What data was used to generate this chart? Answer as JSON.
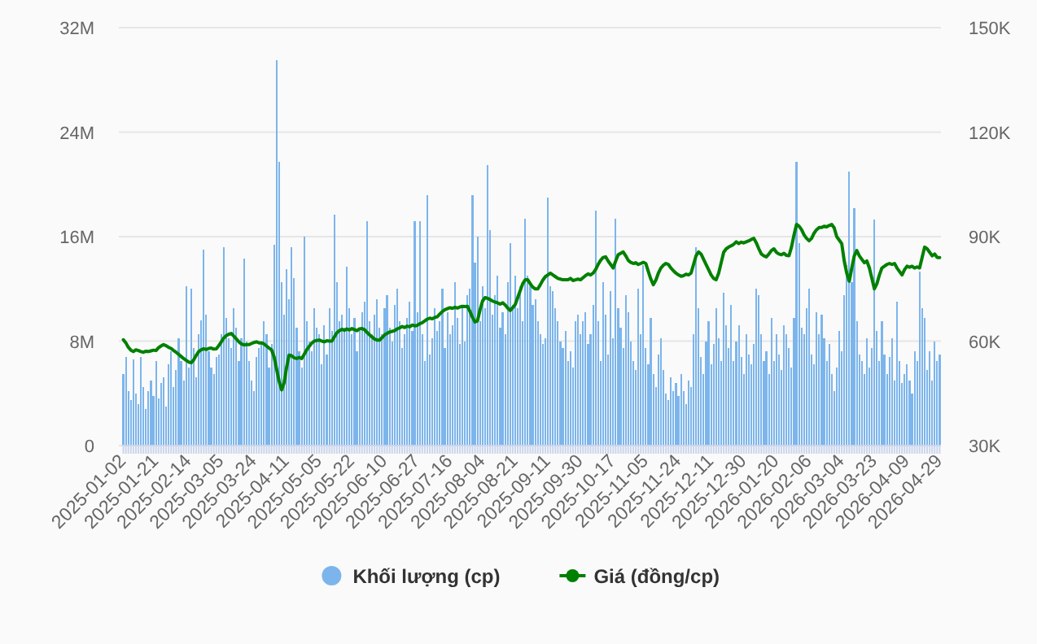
{
  "chart_data": {
    "type": "bar",
    "categories": [
      "2025-01-02",
      null,
      null,
      null,
      null,
      null,
      null,
      null,
      null,
      null,
      null,
      null,
      null,
      "2025-01-21",
      null,
      null,
      null,
      null,
      null,
      null,
      null,
      null,
      null,
      null,
      null,
      null,
      "2025-02-14",
      null,
      null,
      null,
      null,
      null,
      null,
      null,
      null,
      null,
      null,
      null,
      null,
      "2025-03-05",
      null,
      null,
      null,
      null,
      null,
      null,
      null,
      null,
      null,
      null,
      null,
      null,
      "2025-03-24",
      null,
      null,
      null,
      null,
      null,
      null,
      null,
      null,
      null,
      null,
      null,
      null,
      "2025-04-11",
      null,
      null,
      null,
      null,
      null,
      null,
      null,
      null,
      null,
      null,
      null,
      null,
      "2025-05-05",
      null,
      null,
      null,
      null,
      null,
      null,
      null,
      null,
      null,
      null,
      null,
      null,
      "2025-05-22",
      null,
      null,
      null,
      null,
      null,
      null,
      null,
      null,
      null,
      null,
      null,
      null,
      "2025-06-10",
      null,
      null,
      null,
      null,
      null,
      null,
      null,
      null,
      null,
      null,
      null,
      null,
      "2025-06-27",
      null,
      null,
      null,
      null,
      null,
      null,
      null,
      null,
      null,
      null,
      null,
      null,
      "2025-07-16",
      null,
      null,
      null,
      null,
      null,
      null,
      null,
      null,
      null,
      null,
      null,
      null,
      "2025-08-04",
      null,
      null,
      null,
      null,
      null,
      null,
      null,
      null,
      null,
      null,
      null,
      null,
      "2025-08-21",
      null,
      null,
      null,
      null,
      null,
      null,
      null,
      null,
      null,
      null,
      null,
      null,
      "2025-09-11",
      null,
      null,
      null,
      null,
      null,
      null,
      null,
      null,
      null,
      null,
      null,
      null,
      "2025-09-30",
      null,
      null,
      null,
      null,
      null,
      null,
      null,
      null,
      null,
      null,
      null,
      null,
      "2025-10-17",
      null,
      null,
      null,
      null,
      null,
      null,
      null,
      null,
      null,
      null,
      null,
      null,
      "2025-11-05",
      null,
      null,
      null,
      null,
      null,
      null,
      null,
      null,
      null,
      null,
      null,
      null,
      "2025-11-24",
      null,
      null,
      null,
      null,
      null,
      null,
      null,
      null,
      null,
      null,
      null,
      null,
      "2025-12-11",
      null,
      null,
      null,
      null,
      null,
      null,
      null,
      null,
      null,
      null,
      null,
      null,
      "2025-12-30",
      null,
      null,
      null,
      null,
      null,
      null,
      null,
      null,
      null,
      null,
      null,
      null,
      "2026-01-20",
      null,
      null,
      null,
      null,
      null,
      null,
      null,
      null,
      null,
      null,
      null,
      null,
      "2026-02-06",
      null,
      null,
      null,
      null,
      null,
      null,
      null,
      null,
      null,
      null,
      null,
      null,
      "2026-03-04",
      null,
      null,
      null,
      null,
      null,
      null,
      null,
      null,
      null,
      null,
      null,
      null,
      "2026-03-23",
      null,
      null,
      null,
      null,
      null,
      null,
      null,
      null,
      null,
      null,
      null,
      null,
      "2026-04-09",
      null,
      null,
      null,
      null,
      null,
      null,
      null,
      null,
      null,
      null,
      null,
      null,
      "2026-04-29"
    ],
    "series": [
      {
        "name": "Khối lượng (cp)",
        "type": "bar",
        "color": "#7cb5ec",
        "values": [
          5500000,
          6800000,
          4200000,
          3500000,
          6600000,
          4000000,
          3200000,
          6800000,
          4500000,
          2800000,
          4200000,
          5000000,
          3800000,
          6500000,
          3600000,
          4800000,
          5200000,
          3000000,
          6200000,
          7200000,
          4500000,
          5800000,
          8200000,
          6500000,
          5000000,
          12200000,
          6000000,
          12000000,
          7500000,
          5200000,
          8500000,
          9600000,
          15000000,
          10000000,
          7200000,
          6000000,
          5500000,
          6800000,
          7000000,
          8500000,
          15200000,
          9800000,
          8200000,
          7500000,
          10500000,
          9000000,
          6500000,
          8200000,
          14300000,
          8000000,
          6500000,
          5000000,
          4200000,
          6800000,
          7500000,
          8000000,
          9500000,
          8500000,
          6000000,
          7800000,
          15400000,
          29500000,
          21700000,
          12500000,
          10000000,
          13500000,
          11200000,
          15200000,
          12800000,
          9000000,
          7200000,
          6000000,
          16000000,
          9500000,
          8000000,
          7200000,
          10500000,
          9000000,
          8500000,
          6200000,
          9200000,
          7000000,
          10500000,
          8800000,
          17700000,
          12500000,
          9500000,
          10000000,
          9000000,
          13700000,
          10500000,
          8500000,
          9800000,
          7200000,
          8800000,
          10200000,
          11000000,
          17200000,
          9500000,
          8500000,
          10000000,
          11200000,
          9000000,
          8500000,
          10500000,
          11500000,
          9000000,
          8000000,
          10800000,
          12000000,
          9500000,
          7500000,
          8500000,
          9800000,
          11000000,
          8800000,
          17200000,
          10200000,
          17200000,
          8500000,
          6500000,
          19200000,
          7000000,
          8200000,
          10500000,
          8800000,
          9500000,
          12000000,
          7500000,
          10200000,
          8500000,
          9200000,
          12500000,
          9800000,
          7800000,
          10500000,
          8000000,
          11500000,
          12000000,
          19200000,
          14000000,
          16000000,
          9500000,
          12200000,
          10500000,
          21500000,
          16500000,
          10000000,
          11500000,
          13000000,
          9000000,
          10200000,
          8500000,
          12500000,
          15500000,
          10800000,
          13000000,
          10500000,
          12200000,
          9500000,
          17400000,
          13000000,
          12500000,
          10800000,
          11200000,
          9500000,
          8500000,
          7800000,
          8200000,
          19000000,
          12200000,
          11800000,
          10500000,
          9500000,
          8000000,
          7500000,
          8800000,
          6500000,
          7200000,
          6000000,
          9500000,
          10000000,
          8500000,
          9500000,
          10200000,
          7800000,
          8500000,
          10800000,
          18000000,
          9500000,
          6500000,
          12500000,
          10000000,
          7000000,
          11800000,
          8200000,
          17400000,
          10500000,
          9000000,
          7500000,
          11500000,
          10200000,
          8000000,
          6500000,
          5800000,
          12000000,
          8500000,
          13800000,
          7500000,
          6200000,
          9800000,
          5500000,
          4500000,
          7000000,
          8200000,
          5800000,
          4000000,
          3500000,
          5200000,
          4200000,
          4800000,
          3800000,
          5500000,
          4200000,
          3200000,
          5000000,
          4500000,
          8500000,
          15200000,
          10500000,
          6800000,
          5500000,
          8000000,
          9500000,
          6200000,
          7800000,
          10500000,
          8200000,
          6500000,
          11700000,
          9200000,
          7500000,
          10800000,
          6500000,
          8000000,
          9200000,
          6800000,
          5500000,
          8500000,
          7000000,
          6200000,
          7800000,
          12000000,
          11500000,
          8500000,
          6500000,
          7200000,
          5500000,
          9800000,
          6500000,
          8500000,
          7000000,
          5800000,
          9200000,
          8500000,
          7500000,
          6000000,
          9800000,
          21700000,
          15500000,
          9000000,
          8500000,
          10500000,
          12000000,
          7000000,
          6200000,
          10200000,
          8500000,
          10000000,
          8200000,
          6500000,
          7800000,
          5500000,
          4200000,
          6000000,
          8800000,
          7200000,
          11500000,
          13800000,
          21000000,
          12500000,
          18200000,
          9500000,
          7000000,
          6500000,
          5500000,
          8200000,
          6000000,
          7500000,
          17300000,
          8800000,
          6500000,
          9500000,
          7000000,
          5500000,
          6800000,
          8200000,
          5000000,
          11000000,
          6500000,
          4800000,
          5500000,
          6200000,
          5000000,
          4000000,
          7200000,
          6500000,
          13300000,
          10500000,
          9800000,
          5800000,
          7200000,
          5000000,
          8000000,
          6500000,
          7000000
        ]
      },
      {
        "name": "Giá (đồng/cp)",
        "type": "line",
        "axis": "y2",
        "color": "#008000",
        "values": [
          60400,
          59500,
          58200,
          57400,
          57000,
          57500,
          57300,
          57000,
          56800,
          57100,
          57000,
          57200,
          57400,
          57300,
          58100,
          58600,
          59000,
          58700,
          58200,
          57900,
          57300,
          56800,
          56200,
          55600,
          55000,
          54500,
          54000,
          53800,
          54600,
          55900,
          57000,
          57500,
          57800,
          57600,
          57900,
          58000,
          57700,
          57800,
          58700,
          59800,
          60900,
          61600,
          62000,
          62200,
          61400,
          60600,
          59800,
          59200,
          58900,
          59000,
          59000,
          59300,
          59600,
          59800,
          59500,
          59500,
          59200,
          58600,
          58000,
          57500,
          55500,
          52000,
          48500,
          46000,
          48000,
          52500,
          56000,
          55800,
          55200,
          55000,
          55300,
          55000,
          56200,
          57500,
          58500,
          59400,
          60000,
          60200,
          60300,
          60000,
          59800,
          60100,
          60000,
          60000,
          61200,
          62400,
          63000,
          63400,
          63100,
          63500,
          63200,
          63600,
          63300,
          63000,
          63500,
          63600,
          63300,
          62500,
          61800,
          61200,
          60600,
          60300,
          60300,
          61000,
          61800,
          62200,
          62600,
          62800,
          63000,
          63500,
          63800,
          64200,
          63900,
          64300,
          64100,
          64600,
          64400,
          64500,
          65000,
          65300,
          65800,
          66300,
          66600,
          66400,
          66800,
          67000,
          67800,
          68500,
          69000,
          69300,
          69600,
          69400,
          69700,
          69500,
          69800,
          70000,
          69900,
          70000,
          68500,
          66800,
          65500,
          65800,
          69000,
          71500,
          72500,
          72300,
          71900,
          71500,
          71200,
          71000,
          70600,
          71000,
          70400,
          69500,
          68800,
          69600,
          70500,
          72500,
          74500,
          76500,
          77600,
          77600,
          76500,
          75500,
          75000,
          75000,
          76200,
          77500,
          78500,
          79000,
          79500,
          79000,
          78500,
          78000,
          77800,
          77600,
          77600,
          77600,
          78000,
          77400,
          77600,
          77800,
          77600,
          78200,
          78800,
          79300,
          79000,
          79500,
          80500,
          82000,
          83200,
          84000,
          84200,
          83000,
          82000,
          81000,
          83000,
          84800,
          85200,
          85600,
          84500,
          83200,
          82600,
          82300,
          82500,
          82000,
          82300,
          82600,
          82300,
          80000,
          77800,
          76200,
          77500,
          79500,
          81000,
          81800,
          82300,
          82000,
          81000,
          80200,
          79500,
          79000,
          78600,
          78800,
          79200,
          79000,
          79500,
          82000,
          84500,
          85600,
          85000,
          83500,
          82000,
          80500,
          79000,
          78000,
          77600,
          79500,
          82500,
          85500,
          86500,
          87000,
          87400,
          87800,
          88500,
          88000,
          88400,
          88200,
          88500,
          88800,
          89200,
          89500,
          88200,
          86500,
          85000,
          84500,
          84200,
          85000,
          86000,
          86500,
          85500,
          85000,
          84800,
          85200,
          84600,
          84500,
          87000,
          90500,
          93500,
          93000,
          92000,
          90500,
          89500,
          88800,
          89500,
          91000,
          92000,
          92600,
          92600,
          93000,
          92800,
          93200,
          93500,
          92500,
          90000,
          89000,
          88000,
          83000,
          79500,
          77200,
          81000,
          84500,
          86000,
          84500,
          83500,
          82500,
          83000,
          81000,
          78000,
          75000,
          76500,
          79000,
          81000,
          81500,
          82000,
          82300,
          82000,
          82300,
          81000,
          80000,
          79000,
          80500,
          81500,
          81200,
          81500,
          81000,
          81300,
          81000,
          84000,
          87000,
          86500,
          85500,
          84500,
          85000,
          84000,
          84000
        ]
      }
    ],
    "ylim": [
      0,
      32000000
    ],
    "yticks": [
      {
        "value": 0,
        "label": "0"
      },
      {
        "value": 8000000,
        "label": "8M"
      },
      {
        "value": 16000000,
        "label": "16M"
      },
      {
        "value": 24000000,
        "label": "24M"
      },
      {
        "value": 32000000,
        "label": "32M"
      }
    ],
    "y2lim": [
      30000,
      150000
    ],
    "y2ticks": [
      {
        "value": 30000,
        "label": "30K"
      },
      {
        "value": 60000,
        "label": "60K"
      },
      {
        "value": 90000,
        "label": "90K"
      },
      {
        "value": 120000,
        "label": "120K"
      },
      {
        "value": 150000,
        "label": "150K"
      }
    ],
    "grid": "y",
    "legend": "bottom"
  }
}
